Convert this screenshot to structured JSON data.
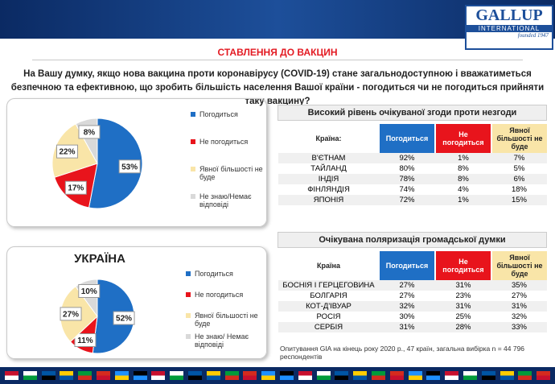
{
  "header": {
    "logo": "GALLUP",
    "logo_sub": "INTERNATIONAL",
    "logo_note": "founded 1947",
    "title": "СТАВЛЕННЯ ДО ВАКЦИН",
    "question": "На Вашу думку, якщо нова вакцина проти коронавірусу (COVID-19) стане загальнодоступною і вважатиметься безпечною та ефективною, що зробить більшість населення Вашої країни - погодиться чи не погодиться прийняти таку вакцину?"
  },
  "chart_data": [
    {
      "type": "pie",
      "categories": [
        "Погодиться",
        "Не погодиться",
        "Явної більшості не буде",
        "Не знаю/Немає відповіді"
      ],
      "values": [
        53,
        17,
        22,
        8
      ],
      "value_labels": [
        "53%",
        "17%",
        "22%",
        "8%"
      ],
      "colors": [
        "#1f6fc5",
        "#e8141c",
        "#f9e5a8",
        "#d9d9d9"
      ]
    },
    {
      "type": "pie",
      "title": "УКРАЇНА",
      "categories": [
        "Погодиться",
        "Не погодиться",
        "Явної більшості не буде",
        "Не знаю/ Немає відповіді"
      ],
      "values": [
        52,
        11,
        27,
        10
      ],
      "value_labels": [
        "52%",
        "11%",
        "27%",
        "10%"
      ],
      "colors": [
        "#1f6fc5",
        "#e8141c",
        "#f9e5a8",
        "#d9d9d9"
      ]
    }
  ],
  "tables": [
    {
      "title": "Високий рівень очікуваної згоди проти незгоди",
      "columns": [
        "Країна:",
        "Погодиться",
        "Не погодиться",
        "Явної більшості не буде"
      ],
      "rows": [
        [
          "В'ЄТНАМ",
          "92%",
          "1%",
          "7%"
        ],
        [
          "ТАЙЛАНД",
          "80%",
          "8%",
          "5%"
        ],
        [
          "ІНДІЯ",
          "78%",
          "8%",
          "6%"
        ],
        [
          "ФІНЛЯНДІЯ",
          "74%",
          "4%",
          "18%"
        ],
        [
          "ЯПОНІЯ",
          "72%",
          "1%",
          "15%"
        ]
      ]
    },
    {
      "title": "Очікувана поляризація громадської думки",
      "columns": [
        "Країна",
        "Погодиться",
        "Не погодиться",
        "Явної більшості не буде"
      ],
      "rows": [
        [
          "БОСНІЯ І ГЕРЦЕГОВИНА",
          "27%",
          "31%",
          "35%"
        ],
        [
          "БОЛГАРІЯ",
          "27%",
          "23%",
          "27%"
        ],
        [
          "КОТ-Д'ІВУАР",
          "32%",
          "31%",
          "31%"
        ],
        [
          "РОСІЯ",
          "30%",
          "25%",
          "32%"
        ],
        [
          "СЕРБІЯ",
          "31%",
          "28%",
          "33%"
        ]
      ]
    }
  ],
  "footnote": "Опитування GIA на кінець року 2020 р., 47 країн, загальна вибірка n = 44 796 респондентів"
}
